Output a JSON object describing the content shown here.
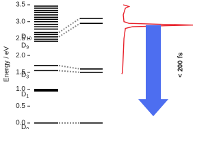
{
  "chart_data": {
    "type": "energy-levels",
    "ylabel": "Energy / eV",
    "ylim": [
      0,
      3.5
    ],
    "yticks": [
      {
        "value": 0,
        "label": "0.0"
      },
      {
        "value": 0.5,
        "label": "0.5"
      },
      {
        "value": 1,
        "label": "1.0"
      },
      {
        "value": 1.5,
        "label": "1.5"
      },
      {
        "value": 2,
        "label": "2.0"
      },
      {
        "value": 2.5,
        "label": "2.5"
      },
      {
        "value": 3,
        "label": "3.0"
      },
      {
        "value": 3.5,
        "label": "3.5"
      }
    ],
    "left_levels": [
      {
        "energy": 0,
        "label": "D",
        "sub": "0"
      },
      {
        "energy": 0.97,
        "label": "D",
        "sub": "1",
        "bold": true
      },
      {
        "energy": 1.55,
        "label": "D",
        "sub": "3"
      },
      {
        "energy": 1.7
      },
      {
        "energy": 2.42,
        "label": "D",
        "sub": "9"
      },
      {
        "energy": 2.48
      },
      {
        "energy": 2.55
      },
      {
        "energy": 2.62
      },
      {
        "energy": 2.68,
        "label": "D",
        "sub": "10"
      },
      {
        "energy": 2.78
      },
      {
        "energy": 2.85
      },
      {
        "energy": 2.92
      },
      {
        "energy": 3.0
      },
      {
        "energy": 3.07
      },
      {
        "energy": 3.13
      },
      {
        "energy": 3.2
      },
      {
        "energy": 3.27
      },
      {
        "energy": 3.33
      },
      {
        "energy": 3.4
      },
      {
        "energy": 3.46
      }
    ],
    "right_levels": [
      0,
      1.5,
      1.6,
      2.95,
      3.1
    ],
    "correlations": [
      {
        "from": 0,
        "to": 0
      },
      {
        "from": 1.55,
        "to": 1.5
      },
      {
        "from": 1.7,
        "to": 1.6
      },
      {
        "from": 2.55,
        "to": 2.95
      },
      {
        "from": 2.68,
        "to": 3.1
      }
    ],
    "spectrum": {
      "color": "#e8202a",
      "energy": [
        3.5,
        3.45,
        3.4,
        3.2,
        3.0,
        2.95,
        2.92,
        2.9,
        2.88,
        2.85,
        2.8,
        2.5,
        2.0,
        1.5,
        1.45
      ],
      "intensity": [
        0.02,
        0.1,
        0.05,
        0.02,
        0.03,
        0.1,
        0.6,
        1.0,
        0.6,
        0.15,
        0.05,
        0.03,
        0.02,
        0.01,
        0
      ]
    },
    "arrow": {
      "from": 2.9,
      "to": 0.2,
      "label": "< 200 fs",
      "color": "#4d6ef0"
    }
  }
}
